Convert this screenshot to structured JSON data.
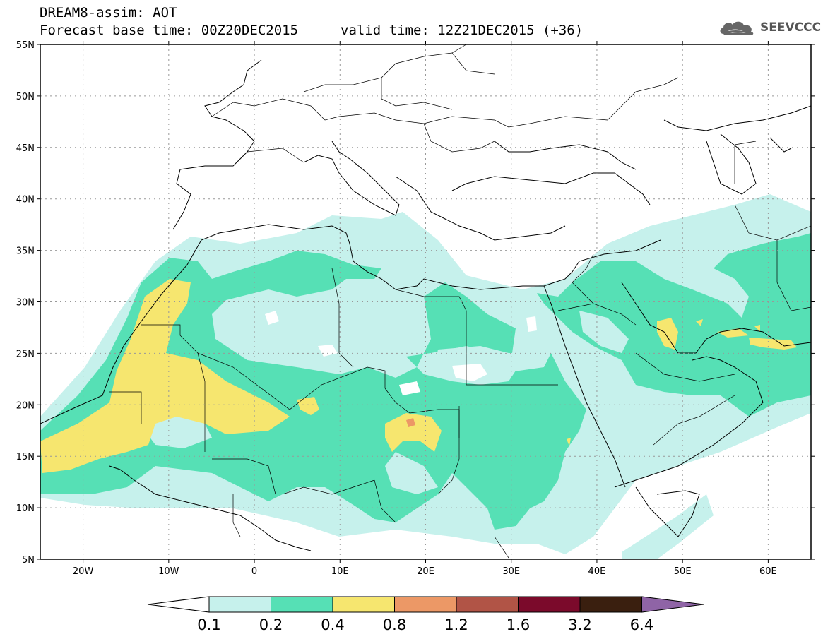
{
  "header": {
    "line1": "DREAM8-assim: AOT",
    "base_time": "Forecast base time: 00Z20DEC2015",
    "valid_time": "valid time: 12Z21DEC2015 (+36)"
  },
  "logo": {
    "text": "SEEVCCC",
    "icon": "cloud-icon"
  },
  "map": {
    "lon_range": [
      -25,
      65
    ],
    "lat_range": [
      5,
      55
    ],
    "lat_ticks": [
      {
        "value": 55,
        "label": "55N"
      },
      {
        "value": 50,
        "label": "50N"
      },
      {
        "value": 45,
        "label": "45N"
      },
      {
        "value": 40,
        "label": "40N"
      },
      {
        "value": 35,
        "label": "35N"
      },
      {
        "value": 30,
        "label": "30N"
      },
      {
        "value": 25,
        "label": "25N"
      },
      {
        "value": 20,
        "label": "20N"
      },
      {
        "value": 15,
        "label": "15N"
      },
      {
        "value": 10,
        "label": "10N"
      },
      {
        "value": 5,
        "label": "5N"
      }
    ],
    "lon_ticks": [
      {
        "value": -20,
        "label": "20W"
      },
      {
        "value": -10,
        "label": "10W"
      },
      {
        "value": 0,
        "label": "0"
      },
      {
        "value": 10,
        "label": "10E"
      },
      {
        "value": 20,
        "label": "20E"
      },
      {
        "value": 30,
        "label": "30E"
      },
      {
        "value": 40,
        "label": "40E"
      },
      {
        "value": 50,
        "label": "50E"
      },
      {
        "value": 60,
        "label": "60E"
      }
    ],
    "grid": true
  },
  "colorbar": {
    "levels": [
      "0.1",
      "0.2",
      "0.4",
      "0.8",
      "1.2",
      "1.6",
      "3.2",
      "6.4"
    ],
    "colors": [
      "#ffffff",
      "#c6f1ec",
      "#56e0b5",
      "#f6e66f",
      "#ec9866",
      "#b15446",
      "#7b0a2b",
      "#3a1f0f",
      "#8f64a6"
    ]
  }
}
